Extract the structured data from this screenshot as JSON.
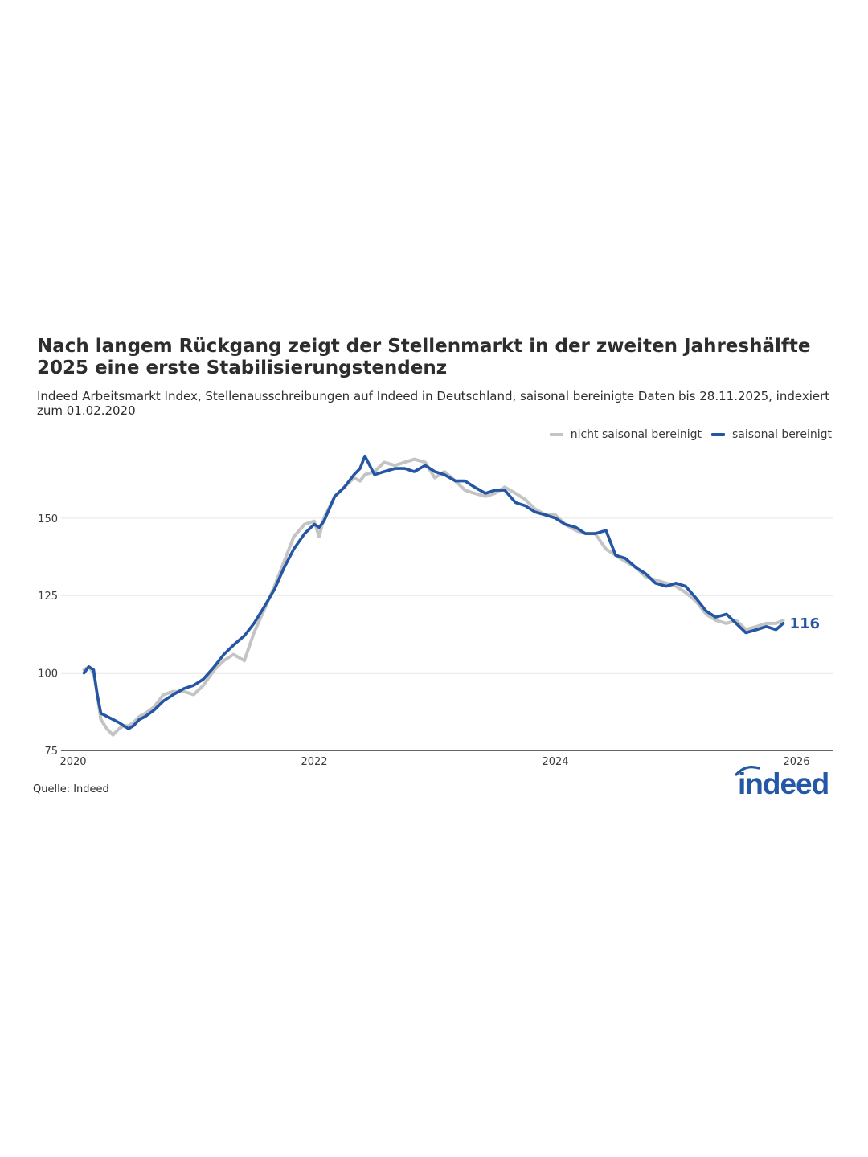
{
  "chart_data": {
    "type": "line",
    "title": "Nach langem Rückgang zeigt der Stellenmarkt in der zweiten Jahreshälfte 2025 eine erste Stabilisierungstendenz",
    "subtitle": "Indeed Arbeitsmarkt Index, Stellenausschreibungen auf Indeed in Deutschland, saisonal bereinigte Daten bis 28.11.2025, indexiert zum 01.02.2020",
    "source": "Quelle: Indeed",
    "xlabel": "",
    "ylabel": "",
    "xlim": [
      2019.9,
      2026.3
    ],
    "ylim": [
      75,
      172
    ],
    "y_ticks": [
      75,
      100,
      125,
      150
    ],
    "y_tick_labels": [
      "75",
      "100",
      "125",
      "150"
    ],
    "x_ticks": [
      2020,
      2022,
      2024,
      2026
    ],
    "x_tick_labels": [
      "2020",
      "2022",
      "2024",
      "2026"
    ],
    "grid": true,
    "legend_position": "top-right",
    "end_label": "116",
    "series": [
      {
        "name": "nicht saisonal bereinigt",
        "color": "#c4c4c4",
        "x": [
          2020.09,
          2020.13,
          2020.17,
          2020.2,
          2020.23,
          2020.28,
          2020.33,
          2020.38,
          2020.42,
          2020.46,
          2020.5,
          2020.55,
          2020.6,
          2020.67,
          2020.75,
          2020.83,
          2020.92,
          2021.0,
          2021.08,
          2021.17,
          2021.25,
          2021.33,
          2021.42,
          2021.5,
          2021.58,
          2021.67,
          2021.75,
          2021.83,
          2021.92,
          2022.0,
          2022.04,
          2022.08,
          2022.17,
          2022.25,
          2022.33,
          2022.38,
          2022.42,
          2022.5,
          2022.58,
          2022.67,
          2022.75,
          2022.83,
          2022.92,
          2023.0,
          2023.08,
          2023.17,
          2023.25,
          2023.33,
          2023.42,
          2023.5,
          2023.58,
          2023.67,
          2023.75,
          2023.83,
          2023.92,
          2024.0,
          2024.08,
          2024.17,
          2024.25,
          2024.33,
          2024.42,
          2024.5,
          2024.58,
          2024.67,
          2024.75,
          2024.83,
          2024.92,
          2025.0,
          2025.08,
          2025.17,
          2025.25,
          2025.33,
          2025.42,
          2025.5,
          2025.58,
          2025.67,
          2025.75,
          2025.83,
          2025.89
        ],
        "values": [
          101,
          102,
          100,
          93,
          85,
          82,
          80,
          82,
          83,
          83,
          84,
          86,
          87,
          89,
          93,
          94,
          94,
          93,
          96,
          101,
          104,
          106,
          104,
          113,
          120,
          128,
          136,
          144,
          148,
          149,
          144,
          150,
          157,
          160,
          163,
          162,
          164,
          165,
          168,
          167,
          168,
          169,
          168,
          163,
          165,
          162,
          159,
          158,
          157,
          158,
          160,
          158,
          156,
          153,
          151,
          151,
          148,
          146,
          145,
          145,
          140,
          138,
          136,
          134,
          131,
          130,
          129,
          128,
          126,
          123,
          119,
          117,
          116,
          117,
          114,
          115,
          116,
          116,
          117
        ]
      },
      {
        "name": "saisonal bereinigt",
        "color": "#2456a4",
        "x": [
          2020.09,
          2020.13,
          2020.17,
          2020.2,
          2020.23,
          2020.28,
          2020.33,
          2020.38,
          2020.42,
          2020.46,
          2020.5,
          2020.55,
          2020.6,
          2020.67,
          2020.75,
          2020.83,
          2020.92,
          2021.0,
          2021.08,
          2021.17,
          2021.25,
          2021.33,
          2021.42,
          2021.5,
          2021.58,
          2021.67,
          2021.75,
          2021.83,
          2021.92,
          2022.0,
          2022.04,
          2022.08,
          2022.17,
          2022.25,
          2022.33,
          2022.38,
          2022.42,
          2022.5,
          2022.58,
          2022.67,
          2022.75,
          2022.83,
          2022.92,
          2023.0,
          2023.08,
          2023.17,
          2023.25,
          2023.33,
          2023.42,
          2023.5,
          2023.58,
          2023.67,
          2023.75,
          2023.83,
          2023.92,
          2024.0,
          2024.08,
          2024.17,
          2024.25,
          2024.33,
          2024.42,
          2024.5,
          2024.58,
          2024.67,
          2024.75,
          2024.83,
          2024.92,
          2025.0,
          2025.08,
          2025.17,
          2025.25,
          2025.33,
          2025.42,
          2025.5,
          2025.58,
          2025.67,
          2025.75,
          2025.83,
          2025.89
        ],
        "values": [
          100,
          102,
          101,
          93,
          87,
          86,
          85,
          84,
          83,
          82,
          83,
          85,
          86,
          88,
          91,
          93,
          95,
          96,
          98,
          102,
          106,
          109,
          112,
          116,
          121,
          127,
          134,
          140,
          145,
          148,
          147,
          149,
          157,
          160,
          164,
          166,
          170,
          164,
          165,
          166,
          166,
          165,
          167,
          165,
          164,
          162,
          162,
          160,
          158,
          159,
          159,
          155,
          154,
          152,
          151,
          150,
          148,
          147,
          145,
          145,
          146,
          138,
          137,
          134,
          132,
          129,
          128,
          129,
          128,
          124,
          120,
          118,
          119,
          116,
          113,
          114,
          115,
          114,
          116
        ]
      }
    ]
  }
}
